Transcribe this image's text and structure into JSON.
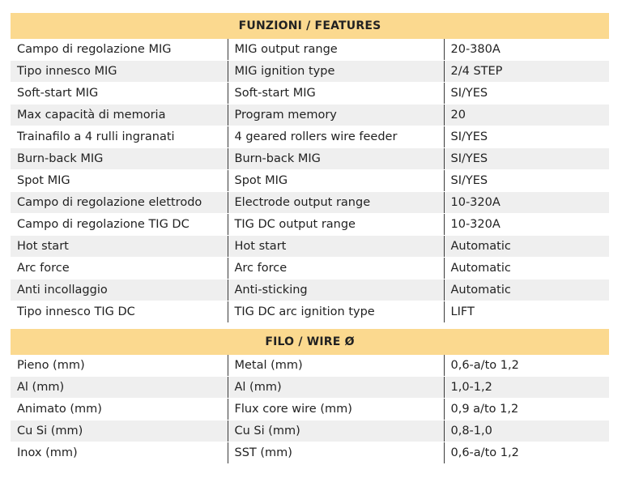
{
  "features": {
    "title": "FUNZIONI / FEATURES",
    "rows": [
      {
        "it": "Campo di regolazione MIG",
        "en": "MIG output range",
        "value": "20-380A"
      },
      {
        "it": "Tipo innesco MIG",
        "en": "MIG ignition type",
        "value": "2/4 STEP"
      },
      {
        "it": "Soft-start MIG",
        "en": "Soft-start MIG",
        "value": "SI/YES"
      },
      {
        "it": "Max capacità di memoria",
        "en": "Program memory",
        "value": "20"
      },
      {
        "it": "Trainafilo a 4 rulli ingranati",
        "en": "4 geared rollers wire feeder",
        "value": "SI/YES"
      },
      {
        "it": "Burn-back MIG",
        "en": "Burn-back MIG",
        "value": "SI/YES"
      },
      {
        "it": "Spot MIG",
        "en": "Spot MIG",
        "value": "SI/YES"
      },
      {
        "it": "Campo di regolazione elettrodo",
        "en": "Electrode output range",
        "value": "10-320A"
      },
      {
        "it": "Campo di regolazione TIG DC",
        "en": "TIG DC output range",
        "value": "10-320A"
      },
      {
        "it": "Hot start",
        "en": "Hot start",
        "value": "Automatic"
      },
      {
        "it": "Arc force",
        "en": "Arc force",
        "value": "Automatic"
      },
      {
        "it": "Anti incollaggio",
        "en": "Anti-sticking",
        "value": "Automatic"
      },
      {
        "it": "Tipo innesco TIG DC",
        "en": "TIG DC arc ignition type",
        "value": "LIFT"
      }
    ]
  },
  "wire": {
    "title": "FILO / WIRE Ø",
    "rows": [
      {
        "it": "Pieno (mm)",
        "en": "Metal (mm)",
        "value": "0,6-a/to 1,2"
      },
      {
        "it": "Al (mm)",
        "en": "Al (mm)",
        "value": "1,0-1,2"
      },
      {
        "it": "Animato (mm)",
        "en": "Flux core wire (mm)",
        "value": "0,9 a/to 1,2"
      },
      {
        "it": "Cu Si (mm)",
        "en": "Cu Si (mm)",
        "value": "0,8-1,0"
      },
      {
        "it": "Inox (mm)",
        "en": "SST (mm)",
        "value": "0,6-a/to 1,2"
      }
    ]
  },
  "colors": {
    "header_bg": "#fbd98f",
    "stripe_bg": "#efefef",
    "divider": "#3a3a3a"
  }
}
